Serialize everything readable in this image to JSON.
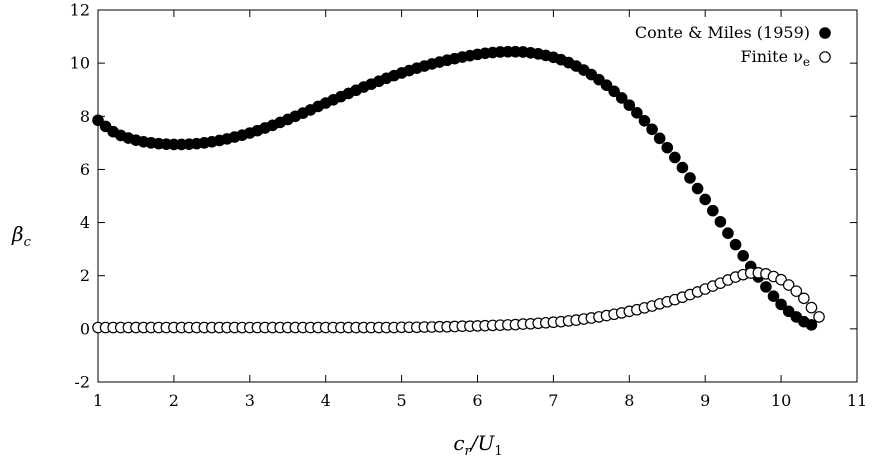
{
  "chart_data": {
    "type": "scatter",
    "title": "",
    "xlabel": "c_r/U_1",
    "ylabel": "β_c",
    "xlim": [
      1,
      11
    ],
    "ylim": [
      -2,
      12
    ],
    "x_ticks": [
      "1",
      "2",
      "3",
      "4",
      "5",
      "6",
      "7",
      "8",
      "9",
      "10",
      "11"
    ],
    "y_ticks": [
      "-2",
      "0",
      "2",
      "4",
      "6",
      "8",
      "10",
      "12"
    ],
    "grid": false,
    "legend_position": "top-right",
    "series": [
      {
        "name": "Conte & Miles (1959)",
        "marker": "filled-circle",
        "points": [
          [
            1.0,
            7.85
          ],
          [
            1.1,
            7.62
          ],
          [
            1.2,
            7.42
          ],
          [
            1.3,
            7.28
          ],
          [
            1.4,
            7.18
          ],
          [
            1.5,
            7.1
          ],
          [
            1.6,
            7.04
          ],
          [
            1.7,
            7.0
          ],
          [
            1.8,
            6.97
          ],
          [
            1.9,
            6.95
          ],
          [
            2.0,
            6.94
          ],
          [
            2.1,
            6.94
          ],
          [
            2.2,
            6.95
          ],
          [
            2.3,
            6.97
          ],
          [
            2.4,
            7.0
          ],
          [
            2.5,
            7.04
          ],
          [
            2.6,
            7.09
          ],
          [
            2.7,
            7.15
          ],
          [
            2.8,
            7.22
          ],
          [
            2.9,
            7.29
          ],
          [
            3.0,
            7.37
          ],
          [
            3.1,
            7.46
          ],
          [
            3.2,
            7.56
          ],
          [
            3.3,
            7.66
          ],
          [
            3.4,
            7.77
          ],
          [
            3.5,
            7.88
          ],
          [
            3.6,
            8.0
          ],
          [
            3.7,
            8.12
          ],
          [
            3.8,
            8.24
          ],
          [
            3.9,
            8.37
          ],
          [
            4.0,
            8.5
          ],
          [
            4.1,
            8.62
          ],
          [
            4.2,
            8.74
          ],
          [
            4.3,
            8.86
          ],
          [
            4.4,
            8.98
          ],
          [
            4.5,
            9.1
          ],
          [
            4.6,
            9.21
          ],
          [
            4.7,
            9.32
          ],
          [
            4.8,
            9.43
          ],
          [
            4.9,
            9.53
          ],
          [
            5.0,
            9.63
          ],
          [
            5.1,
            9.72
          ],
          [
            5.2,
            9.81
          ],
          [
            5.3,
            9.89
          ],
          [
            5.4,
            9.97
          ],
          [
            5.5,
            10.04
          ],
          [
            5.6,
            10.11
          ],
          [
            5.7,
            10.17
          ],
          [
            5.8,
            10.23
          ],
          [
            5.9,
            10.28
          ],
          [
            6.0,
            10.33
          ],
          [
            6.1,
            10.37
          ],
          [
            6.2,
            10.4
          ],
          [
            6.3,
            10.42
          ],
          [
            6.4,
            10.43
          ],
          [
            6.5,
            10.43
          ],
          [
            6.6,
            10.42
          ],
          [
            6.7,
            10.39
          ],
          [
            6.8,
            10.35
          ],
          [
            6.9,
            10.29
          ],
          [
            7.0,
            10.22
          ],
          [
            7.1,
            10.13
          ],
          [
            7.2,
            10.02
          ],
          [
            7.3,
            9.89
          ],
          [
            7.4,
            9.74
          ],
          [
            7.5,
            9.57
          ],
          [
            7.6,
            9.38
          ],
          [
            7.7,
            9.17
          ],
          [
            7.8,
            8.94
          ],
          [
            7.9,
            8.69
          ],
          [
            8.0,
            8.42
          ],
          [
            8.1,
            8.13
          ],
          [
            8.2,
            7.83
          ],
          [
            8.3,
            7.51
          ],
          [
            8.4,
            7.17
          ],
          [
            8.5,
            6.82
          ],
          [
            8.6,
            6.45
          ],
          [
            8.7,
            6.07
          ],
          [
            8.8,
            5.68
          ],
          [
            8.9,
            5.28
          ],
          [
            9.0,
            4.87
          ],
          [
            9.1,
            4.45
          ],
          [
            9.2,
            4.03
          ],
          [
            9.3,
            3.6
          ],
          [
            9.4,
            3.17
          ],
          [
            9.5,
            2.75
          ],
          [
            9.6,
            2.35
          ],
          [
            9.7,
            1.95
          ],
          [
            9.8,
            1.58
          ],
          [
            9.9,
            1.23
          ],
          [
            10.0,
            0.92
          ],
          [
            10.1,
            0.66
          ],
          [
            10.2,
            0.45
          ],
          [
            10.3,
            0.27
          ],
          [
            10.4,
            0.15
          ]
        ]
      },
      {
        "name": "Finite ν_e",
        "marker": "open-circle",
        "points": [
          [
            1.0,
            0.05
          ],
          [
            1.1,
            0.05
          ],
          [
            1.2,
            0.05
          ],
          [
            1.3,
            0.05
          ],
          [
            1.4,
            0.05
          ],
          [
            1.5,
            0.05
          ],
          [
            1.6,
            0.05
          ],
          [
            1.7,
            0.05
          ],
          [
            1.8,
            0.05
          ],
          [
            1.9,
            0.05
          ],
          [
            2.0,
            0.05
          ],
          [
            2.1,
            0.05
          ],
          [
            2.2,
            0.05
          ],
          [
            2.3,
            0.05
          ],
          [
            2.4,
            0.05
          ],
          [
            2.5,
            0.05
          ],
          [
            2.6,
            0.05
          ],
          [
            2.7,
            0.05
          ],
          [
            2.8,
            0.05
          ],
          [
            2.9,
            0.05
          ],
          [
            3.0,
            0.05
          ],
          [
            3.1,
            0.05
          ],
          [
            3.2,
            0.05
          ],
          [
            3.3,
            0.05
          ],
          [
            3.4,
            0.05
          ],
          [
            3.5,
            0.05
          ],
          [
            3.6,
            0.05
          ],
          [
            3.7,
            0.05
          ],
          [
            3.8,
            0.05
          ],
          [
            3.9,
            0.05
          ],
          [
            4.0,
            0.05
          ],
          [
            4.1,
            0.05
          ],
          [
            4.2,
            0.05
          ],
          [
            4.3,
            0.05
          ],
          [
            4.4,
            0.05
          ],
          [
            4.5,
            0.05
          ],
          [
            4.6,
            0.05
          ],
          [
            4.7,
            0.05
          ],
          [
            4.8,
            0.05
          ],
          [
            4.9,
            0.05
          ],
          [
            5.0,
            0.06
          ],
          [
            5.1,
            0.06
          ],
          [
            5.2,
            0.06
          ],
          [
            5.3,
            0.07
          ],
          [
            5.4,
            0.07
          ],
          [
            5.5,
            0.08
          ],
          [
            5.6,
            0.08
          ],
          [
            5.7,
            0.09
          ],
          [
            5.8,
            0.1
          ],
          [
            5.9,
            0.1
          ],
          [
            6.0,
            0.11
          ],
          [
            6.1,
            0.12
          ],
          [
            6.2,
            0.13
          ],
          [
            6.3,
            0.14
          ],
          [
            6.4,
            0.15
          ],
          [
            6.5,
            0.16
          ],
          [
            6.6,
            0.18
          ],
          [
            6.7,
            0.19
          ],
          [
            6.8,
            0.21
          ],
          [
            6.9,
            0.23
          ],
          [
            7.0,
            0.25
          ],
          [
            7.1,
            0.27
          ],
          [
            7.2,
            0.3
          ],
          [
            7.3,
            0.33
          ],
          [
            7.4,
            0.37
          ],
          [
            7.5,
            0.41
          ],
          [
            7.6,
            0.45
          ],
          [
            7.7,
            0.5
          ],
          [
            7.8,
            0.55
          ],
          [
            7.9,
            0.6
          ],
          [
            8.0,
            0.66
          ],
          [
            8.1,
            0.72
          ],
          [
            8.2,
            0.79
          ],
          [
            8.3,
            0.86
          ],
          [
            8.4,
            0.94
          ],
          [
            8.5,
            1.02
          ],
          [
            8.6,
            1.1
          ],
          [
            8.7,
            1.19
          ],
          [
            8.8,
            1.29
          ],
          [
            8.9,
            1.39
          ],
          [
            9.0,
            1.5
          ],
          [
            9.1,
            1.61
          ],
          [
            9.2,
            1.72
          ],
          [
            9.3,
            1.84
          ],
          [
            9.4,
            1.95
          ],
          [
            9.5,
            2.04
          ],
          [
            9.6,
            2.1
          ],
          [
            9.7,
            2.11
          ],
          [
            9.8,
            2.07
          ],
          [
            9.9,
            1.97
          ],
          [
            10.0,
            1.85
          ],
          [
            10.1,
            1.65
          ],
          [
            10.2,
            1.42
          ],
          [
            10.3,
            1.15
          ],
          [
            10.4,
            0.8
          ],
          [
            10.5,
            0.45
          ]
        ]
      }
    ]
  }
}
